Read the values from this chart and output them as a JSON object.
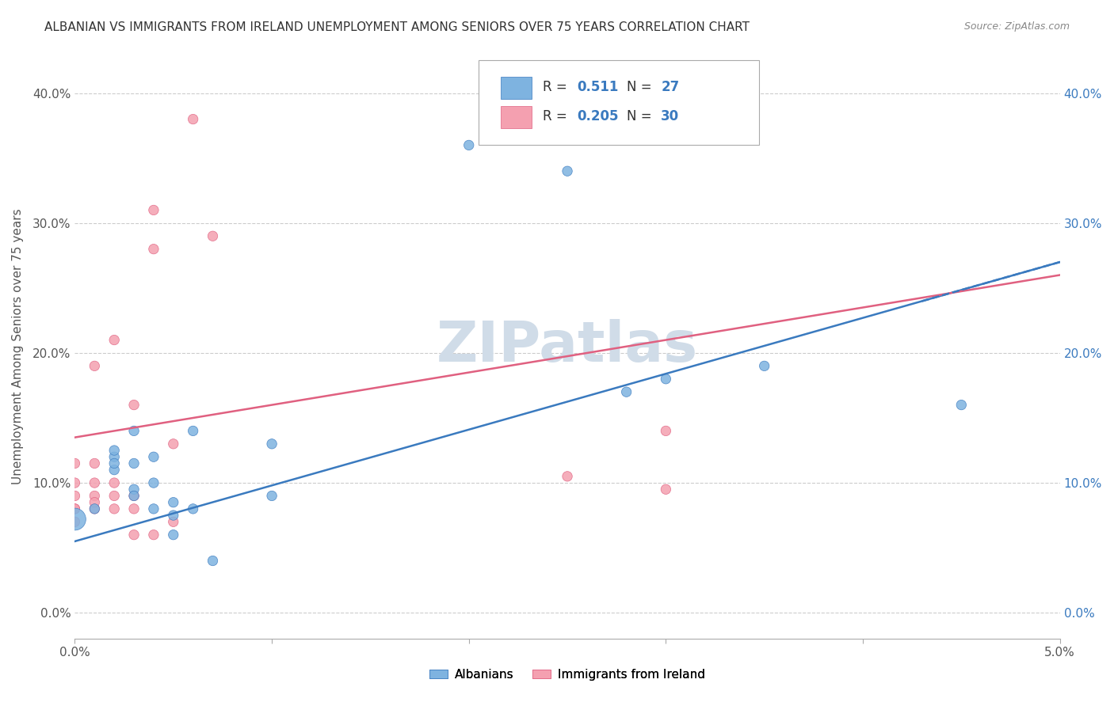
{
  "title": "ALBANIAN VS IMMIGRANTS FROM IRELAND UNEMPLOYMENT AMONG SENIORS OVER 75 YEARS CORRELATION CHART",
  "source": "Source: ZipAtlas.com",
  "ylabel": "Unemployment Among Seniors over 75 years",
  "xlim": [
    0.0,
    0.05
  ],
  "ylim": [
    -0.02,
    0.43
  ],
  "yticks": [
    0.0,
    0.1,
    0.2,
    0.3,
    0.4
  ],
  "ytick_labels": [
    "0.0%",
    "10.0%",
    "20.0%",
    "30.0%",
    "40.0%"
  ],
  "xticks": [
    0.0,
    0.01,
    0.02,
    0.03,
    0.04,
    0.05
  ],
  "xtick_labels": [
    "0.0%",
    "",
    "",
    "",
    "",
    "5.0%"
  ],
  "legend_blue_R": "0.511",
  "legend_blue_N": "27",
  "legend_pink_R": "0.205",
  "legend_pink_N": "30",
  "legend_blue_label": "Albanians",
  "legend_pink_label": "Immigrants from Ireland",
  "blue_color": "#7eb3e0",
  "pink_color": "#f4a0b0",
  "blue_line_color": "#3a7abf",
  "pink_line_color": "#e06080",
  "blue_scatter": [
    [
      0.0,
      0.072
    ],
    [
      0.001,
      0.08
    ],
    [
      0.002,
      0.11
    ],
    [
      0.002,
      0.12
    ],
    [
      0.002,
      0.115
    ],
    [
      0.002,
      0.125
    ],
    [
      0.003,
      0.095
    ],
    [
      0.003,
      0.09
    ],
    [
      0.003,
      0.115
    ],
    [
      0.003,
      0.14
    ],
    [
      0.004,
      0.08
    ],
    [
      0.004,
      0.1
    ],
    [
      0.004,
      0.12
    ],
    [
      0.005,
      0.085
    ],
    [
      0.005,
      0.06
    ],
    [
      0.005,
      0.075
    ],
    [
      0.006,
      0.14
    ],
    [
      0.006,
      0.08
    ],
    [
      0.007,
      0.04
    ],
    [
      0.01,
      0.13
    ],
    [
      0.01,
      0.09
    ],
    [
      0.02,
      0.36
    ],
    [
      0.025,
      0.34
    ],
    [
      0.028,
      0.17
    ],
    [
      0.03,
      0.18
    ],
    [
      0.035,
      0.19
    ],
    [
      0.045,
      0.16
    ]
  ],
  "blue_sizes": [
    400,
    80,
    80,
    80,
    80,
    80,
    80,
    80,
    80,
    80,
    80,
    80,
    80,
    80,
    80,
    80,
    80,
    80,
    80,
    80,
    80,
    80,
    80,
    80,
    80,
    80,
    80
  ],
  "pink_scatter": [
    [
      0.0,
      0.09
    ],
    [
      0.0,
      0.115
    ],
    [
      0.0,
      0.1
    ],
    [
      0.0,
      0.08
    ],
    [
      0.0,
      0.07
    ],
    [
      0.0,
      0.08
    ],
    [
      0.001,
      0.08
    ],
    [
      0.001,
      0.09
    ],
    [
      0.001,
      0.1
    ],
    [
      0.001,
      0.085
    ],
    [
      0.001,
      0.115
    ],
    [
      0.001,
      0.19
    ],
    [
      0.002,
      0.08
    ],
    [
      0.002,
      0.09
    ],
    [
      0.002,
      0.1
    ],
    [
      0.002,
      0.21
    ],
    [
      0.003,
      0.16
    ],
    [
      0.003,
      0.06
    ],
    [
      0.003,
      0.08
    ],
    [
      0.003,
      0.09
    ],
    [
      0.004,
      0.28
    ],
    [
      0.004,
      0.31
    ],
    [
      0.004,
      0.06
    ],
    [
      0.005,
      0.13
    ],
    [
      0.005,
      0.07
    ],
    [
      0.006,
      0.38
    ],
    [
      0.007,
      0.29
    ],
    [
      0.025,
      0.105
    ],
    [
      0.03,
      0.095
    ],
    [
      0.03,
      0.14
    ]
  ],
  "pink_sizes": [
    80,
    80,
    80,
    80,
    80,
    80,
    80,
    80,
    80,
    80,
    80,
    80,
    80,
    80,
    80,
    80,
    80,
    80,
    80,
    80,
    80,
    80,
    80,
    80,
    80,
    80,
    80,
    80,
    80,
    80
  ],
  "background_color": "#ffffff",
  "watermark": "ZIPatlas",
  "watermark_color": "#d0dce8",
  "blue_line_y0": 0.055,
  "blue_line_y1": 0.27,
  "pink_line_y0": 0.135,
  "pink_line_y1": 0.26
}
